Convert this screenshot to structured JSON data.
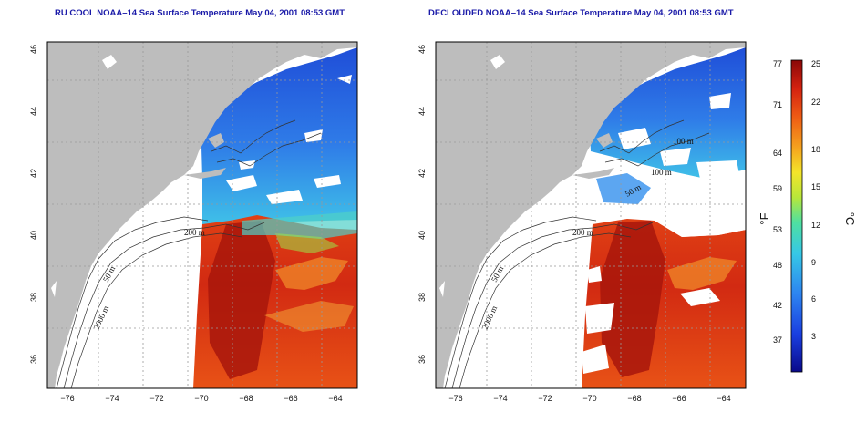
{
  "titles": {
    "left": "RU COOL NOAA–14 Sea Surface Temperature May 04, 2001 08:53 GMT",
    "right": "DECLOUDED NOAA–14 Sea Surface Temperature May 04, 2001 08:53 GMT"
  },
  "axes": {
    "x_ticks": [
      "−76",
      "−74",
      "−72",
      "−70",
      "−68",
      "−66",
      "−64"
    ],
    "y_ticks": [
      "36",
      "38",
      "40",
      "42",
      "44",
      "46"
    ]
  },
  "contours": {
    "left": [
      "200 m",
      "50 m",
      "2000 m"
    ],
    "right": [
      "200 m",
      "50 m",
      "2000 m",
      "100 m",
      "50 m",
      "100 m"
    ]
  },
  "colorbar": {
    "fahrenheit_label": "°F",
    "celsius_label": "°C",
    "fahrenheit_ticks": [
      "77",
      "71",
      "64",
      "59",
      "53",
      "48",
      "42",
      "37"
    ],
    "celsius_ticks": [
      "25",
      "22",
      "18",
      "15",
      "12",
      "9",
      "6",
      "3"
    ]
  }
}
